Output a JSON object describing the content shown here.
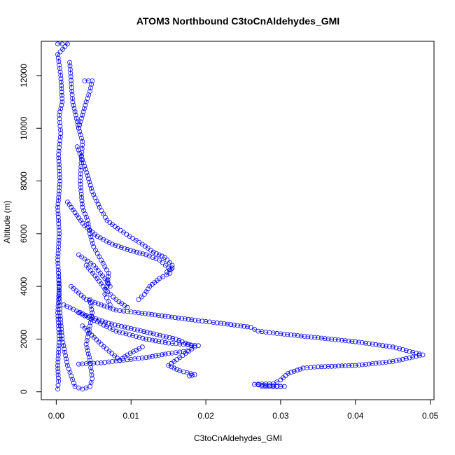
{
  "chart_data": {
    "type": "scatter",
    "title": "ATOM3 Northbound C3toCnAldehydes_GMI",
    "xlabel": "C3toCnAldehydes_GMI",
    "ylabel": "Altitude (m)",
    "xlim": [
      -0.002,
      0.0505
    ],
    "ylim": [
      -300,
      13300
    ],
    "xticks": [
      0,
      0.01,
      0.02,
      0.03,
      0.04,
      0.05
    ],
    "xtick_labels": [
      "0.00",
      "0.01",
      "0.02",
      "0.03",
      "0.04",
      "0.05"
    ],
    "yticks": [
      0,
      2000,
      4000,
      6000,
      8000,
      10000,
      12000
    ],
    "ytick_labels": [
      "0",
      "2000",
      "4000",
      "6000",
      "8000",
      "10000",
      "12000"
    ],
    "grid": false,
    "marker": "open-circle",
    "color": "#0000ff",
    "series": [
      {
        "values": [
          [
            0.0002,
            13200
          ],
          [
            0.0008,
            13200
          ],
          [
            0.0015,
            13200
          ],
          [
            0.0002,
            12800
          ],
          [
            0.0006,
            12000
          ],
          [
            0.0008,
            11000
          ],
          [
            0.0004,
            10500
          ],
          [
            0.0006,
            9800
          ],
          [
            0.0003,
            9000
          ],
          [
            0.0005,
            8000
          ],
          [
            0.0002,
            7000
          ],
          [
            0.0004,
            6000
          ],
          [
            0.0002,
            5000
          ],
          [
            0.0004,
            4000
          ],
          [
            0.0002,
            3000
          ],
          [
            0.0004,
            2000
          ],
          [
            0.0002,
            1000
          ],
          [
            0.0003,
            400
          ],
          [
            0.0002,
            100
          ]
        ]
      },
      {
        "values": [
          [
            0.0018,
            12500
          ],
          [
            0.0022,
            11000
          ],
          [
            0.003,
            10000
          ],
          [
            0.0035,
            9500
          ],
          [
            0.0032,
            8000
          ],
          [
            0.0035,
            7000
          ],
          [
            0.0042,
            6500
          ],
          [
            0.0045,
            6000
          ],
          [
            0.005,
            5500
          ],
          [
            0.006,
            5000
          ],
          [
            0.007,
            4500
          ],
          [
            0.0068,
            4000
          ],
          [
            0.0065,
            3700
          ],
          [
            0.0072,
            3300
          ]
        ]
      },
      {
        "values": [
          [
            0.0038,
            11800
          ],
          [
            0.0048,
            11800
          ],
          [
            0.0045,
            11400
          ],
          [
            0.004,
            11000
          ],
          [
            0.0035,
            10500
          ],
          [
            0.003,
            10000
          ]
        ]
      },
      {
        "values": [
          [
            0.0028,
            9300
          ],
          [
            0.0035,
            8800
          ],
          [
            0.0042,
            8200
          ],
          [
            0.0048,
            7600
          ],
          [
            0.0058,
            7000
          ],
          [
            0.0068,
            6500
          ],
          [
            0.0082,
            6200
          ],
          [
            0.0098,
            5900
          ],
          [
            0.0115,
            5600
          ],
          [
            0.013,
            5300
          ],
          [
            0.0145,
            5100
          ],
          [
            0.0155,
            4800
          ],
          [
            0.0152,
            4500
          ],
          [
            0.0138,
            4300
          ],
          [
            0.0125,
            4000
          ],
          [
            0.0118,
            3700
          ],
          [
            0.011,
            3500
          ]
        ]
      },
      {
        "values": [
          [
            0.0015,
            7200
          ],
          [
            0.0025,
            6800
          ],
          [
            0.0038,
            6300
          ],
          [
            0.0055,
            5900
          ],
          [
            0.0075,
            5600
          ],
          [
            0.0095,
            5400
          ],
          [
            0.012,
            5200
          ],
          [
            0.0138,
            5000
          ],
          [
            0.015,
            4700
          ],
          [
            0.0155,
            4700
          ],
          [
            0.0148,
            4550
          ]
        ]
      },
      {
        "values": [
          [
            0.002,
            4000
          ],
          [
            0.004,
            3500
          ],
          [
            0.006,
            3300
          ],
          [
            0.008,
            3100
          ],
          [
            0.011,
            3000
          ],
          [
            0.015,
            2850
          ],
          [
            0.019,
            2700
          ],
          [
            0.022,
            2600
          ],
          [
            0.026,
            2450
          ],
          [
            0.027,
            2300
          ],
          [
            0.03,
            2200
          ],
          [
            0.035,
            2050
          ],
          [
            0.04,
            1900
          ],
          [
            0.045,
            1700
          ],
          [
            0.049,
            1400
          ],
          [
            0.045,
            1150
          ],
          [
            0.04,
            1000
          ],
          [
            0.035,
            950
          ],
          [
            0.033,
            900
          ],
          [
            0.031,
            700
          ],
          [
            0.03,
            450
          ],
          [
            0.029,
            300
          ],
          [
            0.0275,
            300
          ],
          [
            0.0265,
            280
          ],
          [
            0.0275,
            250
          ],
          [
            0.0305,
            200
          ],
          [
            0.0275,
            200
          ]
        ]
      },
      {
        "values": [
          [
            0.001,
            3300
          ],
          [
            0.004,
            2900
          ],
          [
            0.007,
            2600
          ],
          [
            0.01,
            2400
          ],
          [
            0.013,
            2200
          ],
          [
            0.016,
            2000
          ],
          [
            0.0185,
            1700
          ],
          [
            0.0165,
            1300
          ],
          [
            0.015,
            1000
          ],
          [
            0.0165,
            800
          ],
          [
            0.0185,
            650
          ],
          [
            0.0178,
            600
          ]
        ]
      },
      {
        "values": [
          [
            0.003,
            1050
          ],
          [
            0.006,
            1100
          ],
          [
            0.009,
            1200
          ],
          [
            0.012,
            1300
          ],
          [
            0.015,
            1450
          ],
          [
            0.0175,
            1550
          ]
        ]
      },
      {
        "values": [
          [
            0.003,
            3000
          ],
          [
            0.008,
            2300
          ],
          [
            0.012,
            2000
          ],
          [
            0.015,
            1850
          ],
          [
            0.017,
            1800
          ],
          [
            0.019,
            1750
          ]
        ]
      },
      {
        "values": [
          [
            0.0035,
            2500
          ],
          [
            0.006,
            1800
          ],
          [
            0.0085,
            1200
          ],
          [
            0.0095,
            1400
          ],
          [
            0.0115,
            1700
          ]
        ]
      },
      {
        "values": [
          [
            0.004,
            4800
          ],
          [
            0.0052,
            4400
          ],
          [
            0.0065,
            3900
          ],
          [
            0.008,
            3500
          ],
          [
            0.0095,
            3200
          ]
        ]
      },
      {
        "values": [
          [
            0.003,
            5200
          ],
          [
            0.005,
            4800
          ],
          [
            0.0068,
            4200
          ],
          [
            0.0072,
            4000
          ]
        ]
      },
      {
        "values": [
          [
            0.0003,
            4500
          ],
          [
            0.0005,
            3000
          ],
          [
            0.0008,
            2000
          ],
          [
            0.0015,
            1000
          ],
          [
            0.0025,
            200
          ],
          [
            0.0035,
            100
          ],
          [
            0.0045,
            200
          ],
          [
            0.0048,
            500
          ],
          [
            0.0045,
            1200
          ],
          [
            0.004,
            1800
          ],
          [
            0.0045,
            2500
          ],
          [
            0.0048,
            3000
          ],
          [
            0.0045,
            3500
          ]
        ]
      }
    ]
  }
}
